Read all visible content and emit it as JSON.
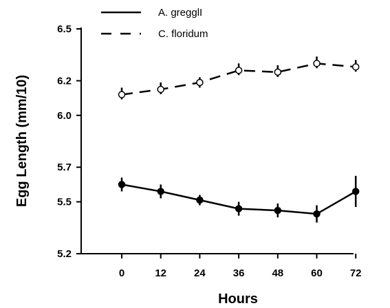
{
  "chart_data": {
    "type": "line",
    "title": "",
    "xlabel": "Hours",
    "ylabel": "Egg Length (mm/10)",
    "x": [
      0,
      12,
      24,
      36,
      48,
      60,
      72
    ],
    "x_tick_labels": [
      "0",
      "12",
      "24",
      "36",
      "48",
      "60",
      "72"
    ],
    "y_ticks": [
      5.2,
      5.5,
      5.7,
      6.0,
      6.2,
      6.5
    ],
    "y_tick_labels": [
      "5.2",
      "5.5",
      "5.7",
      "6.0",
      "6.2",
      "6.5"
    ],
    "ylim": [
      5.2,
      6.5
    ],
    "grid": false,
    "legend_position": "top-left",
    "series": [
      {
        "name": "A. gregglI",
        "line_style": "solid",
        "marker": "filled-circle",
        "color": "#000000",
        "values": [
          5.6,
          5.56,
          5.51,
          5.46,
          5.45,
          5.43,
          5.56
        ],
        "error": [
          0.04,
          0.04,
          0.03,
          0.04,
          0.04,
          0.05,
          0.09
        ]
      },
      {
        "name": "C. floridum",
        "line_style": "dashed",
        "marker": "open-circle",
        "color": "#000000",
        "values": [
          6.12,
          6.15,
          6.19,
          6.26,
          6.25,
          6.3,
          6.28
        ],
        "error": [
          0.04,
          0.04,
          0.03,
          0.04,
          0.04,
          0.04,
          0.04
        ]
      }
    ]
  }
}
